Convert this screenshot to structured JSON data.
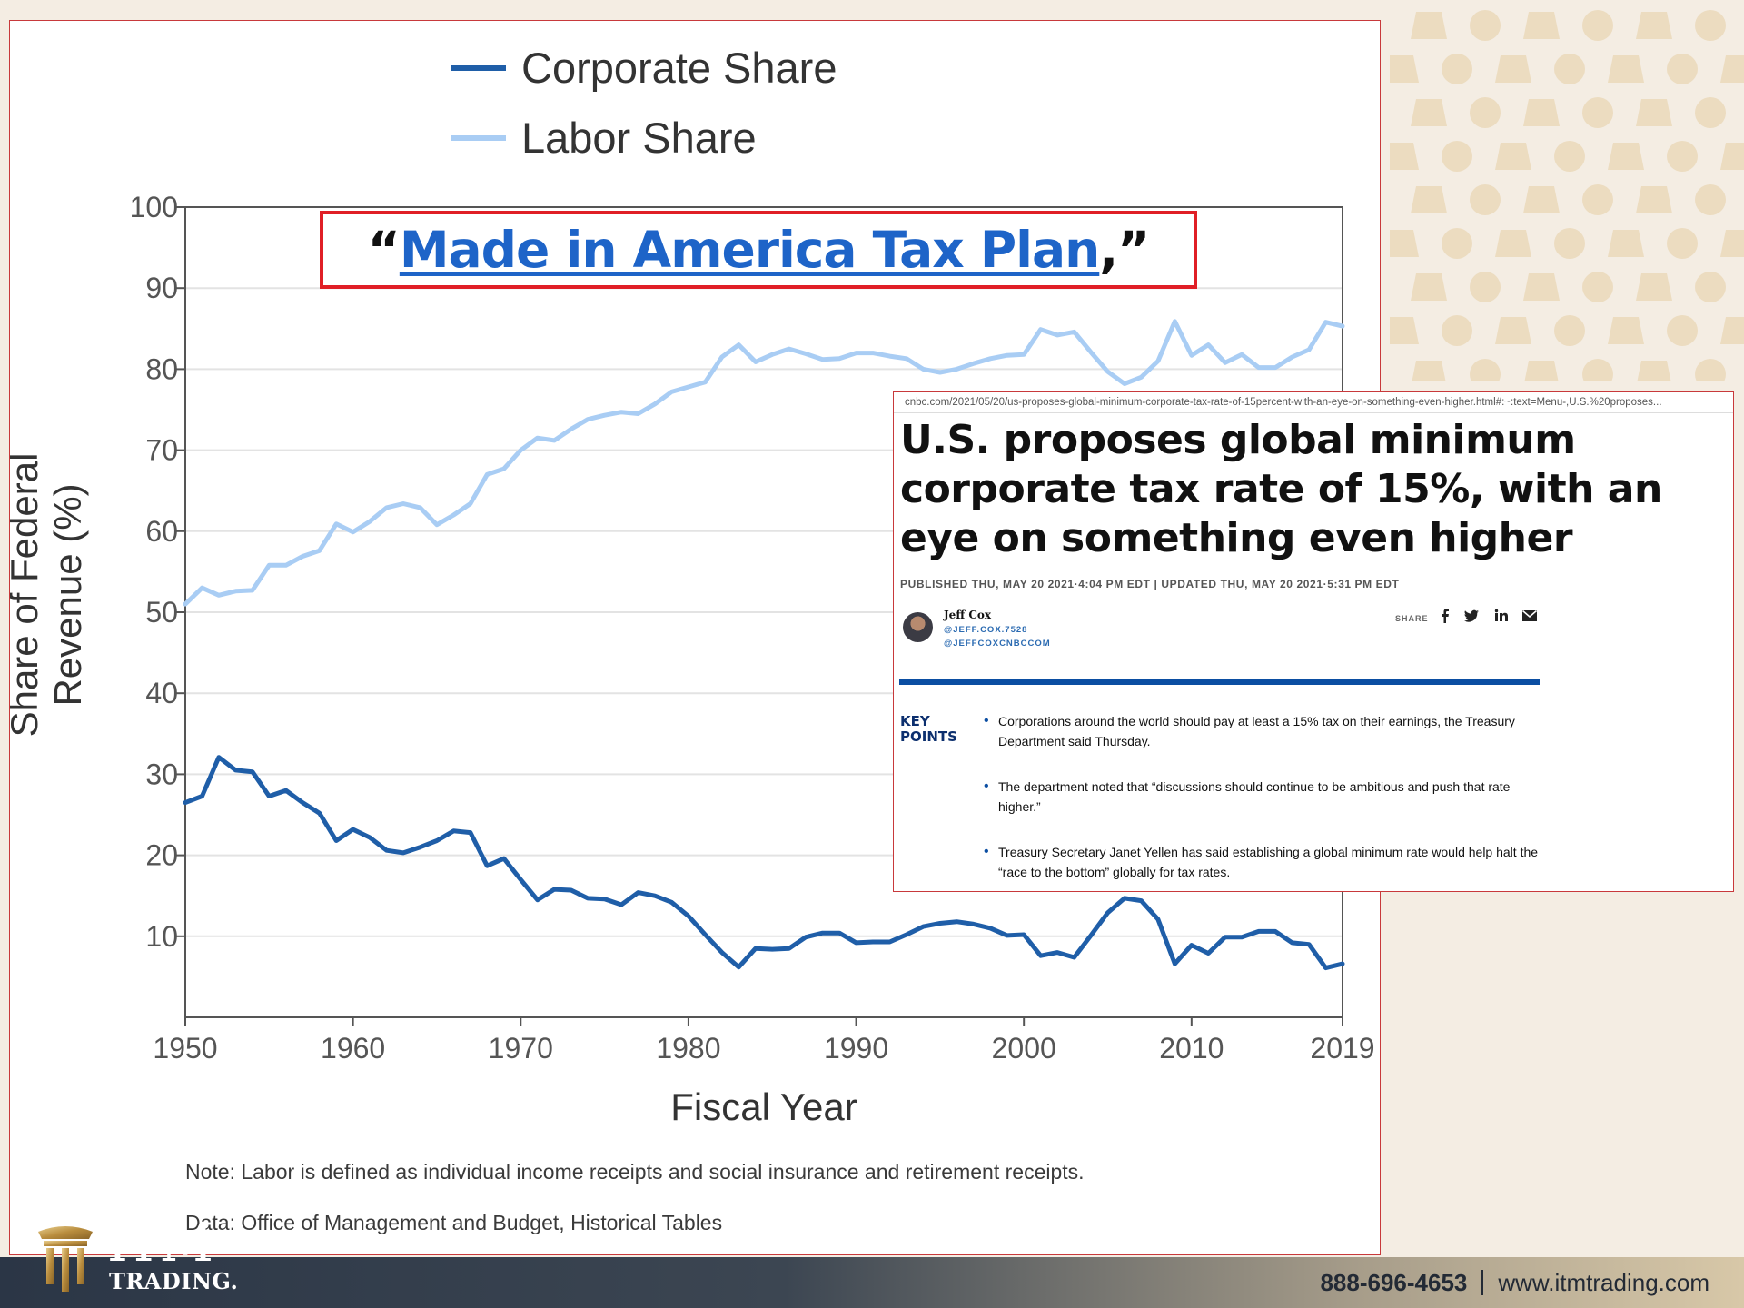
{
  "chart_data": {
    "type": "line",
    "title": "",
    "xlabel": "Fiscal Year",
    "ylabel": "Share of Federal Revenue (%)",
    "xlim": [
      1950,
      2019
    ],
    "ylim": [
      0,
      100
    ],
    "x_ticks": [
      "1950",
      "1960",
      "1970",
      "1980",
      "1990",
      "2000",
      "2010",
      "2019"
    ],
    "y_ticks": [
      "10",
      "20",
      "30",
      "40",
      "50",
      "60",
      "70",
      "80",
      "90",
      "100"
    ],
    "grid": true,
    "legend": "top",
    "x": [
      1950,
      1951,
      1952,
      1953,
      1954,
      1955,
      1956,
      1957,
      1958,
      1959,
      1960,
      1961,
      1962,
      1963,
      1964,
      1965,
      1966,
      1967,
      1968,
      1969,
      1970,
      1971,
      1972,
      1973,
      1974,
      1975,
      1976,
      1977,
      1978,
      1979,
      1980,
      1981,
      1982,
      1983,
      1984,
      1985,
      1986,
      1987,
      1988,
      1989,
      1990,
      1991,
      1992,
      1993,
      1994,
      1995,
      1996,
      1997,
      1998,
      1999,
      2000,
      2001,
      2002,
      2003,
      2004,
      2005,
      2006,
      2007,
      2008,
      2009,
      2010,
      2011,
      2012,
      2013,
      2014,
      2015,
      2016,
      2017,
      2018,
      2019
    ],
    "series": [
      {
        "name": "Corporate Share",
        "color": "#1f5ea8",
        "values": [
          26.5,
          27.3,
          32.1,
          30.5,
          30.3,
          27.3,
          28.0,
          26.5,
          25.2,
          21.8,
          23.2,
          22.2,
          20.6,
          20.3,
          21.0,
          21.8,
          23.0,
          22.8,
          18.7,
          19.6,
          17.0,
          14.5,
          15.8,
          15.7,
          14.7,
          14.6,
          13.9,
          15.4,
          15.0,
          14.2,
          12.5,
          10.2,
          8.0,
          6.2,
          8.5,
          8.4,
          8.5,
          9.9,
          10.4,
          10.4,
          9.2,
          9.3,
          9.3,
          10.2,
          11.2,
          11.6,
          11.8,
          11.5,
          11.0,
          10.1,
          10.2,
          7.6,
          8.0,
          7.4,
          10.1,
          12.9,
          14.7,
          14.4,
          12.1,
          6.6,
          8.9,
          7.9,
          9.9,
          9.9,
          10.6,
          10.6,
          9.2,
          9.0,
          6.1,
          6.6
        ]
      },
      {
        "name": "Labor Share",
        "color": "#a9cdf4",
        "values": [
          51.0,
          53.0,
          52.1,
          52.6,
          52.7,
          55.8,
          55.8,
          56.9,
          57.6,
          60.9,
          59.9,
          61.2,
          62.9,
          63.4,
          62.9,
          60.8,
          62.0,
          63.4,
          67.0,
          67.7,
          70.0,
          71.5,
          71.2,
          72.6,
          73.8,
          74.3,
          74.7,
          74.5,
          75.7,
          77.2,
          77.8,
          78.4,
          81.5,
          83.0,
          80.9,
          81.8,
          82.5,
          81.9,
          81.2,
          81.3,
          82.0,
          82.0,
          81.6,
          81.3,
          80.0,
          79.6,
          80.0,
          80.7,
          81.3,
          81.7,
          81.8,
          84.9,
          84.2,
          84.6,
          82.1,
          79.7,
          78.2,
          79.0,
          81.0,
          85.9,
          81.7,
          83.0,
          80.8,
          81.8,
          80.2,
          80.2,
          81.5,
          82.4,
          85.8,
          85.3
        ]
      }
    ]
  },
  "notes": {
    "note": "Note: Labor is defined as individual income receipts and social insurance and retirement receipts.",
    "data_source": "Data: Office of Management and Budget, Historical Tables"
  },
  "headline": {
    "open_quote": "“",
    "link_text": "Made in America Tax Plan",
    "close_quote": ",”"
  },
  "article": {
    "url": "cnbc.com/2021/05/20/us-proposes-global-minimum-corporate-tax-rate-of-15percent-with-an-eye-on-something-even-higher.html#:~:text=Menu-,U.S.%20proposes...",
    "title": "U.S. proposes global minimum corporate tax rate of 15%, with an eye on something even higher",
    "dateline": "PUBLISHED THU, MAY 20 2021·4:04 PM EDT | UPDATED THU, MAY 20 2021·5:31 PM EDT",
    "author": "Jeff Cox",
    "handle_1": "@JEFF.COX.7528",
    "handle_2": "@JEFFCOXCNBCCOM",
    "share_label": "SHARE",
    "key_points_label_1": "KEY",
    "key_points_label_2": "POINTS",
    "key_points": [
      "Corporations around the world should pay at least a 15% tax on their earnings, the Treasury Department said Thursday.",
      "The department noted that “discussions should continue to be ambitious and push that rate higher.”",
      "Treasury Secretary Janet Yellen has said establishing a global minimum rate would help halt the “race to the bottom” globally for tax rates."
    ]
  },
  "footer": {
    "logo_top": "ITM",
    "logo_bottom": "TRADING.",
    "phone": "888-696-4653",
    "website": "www.itmtrading.com"
  },
  "icons": [
    "facebook-icon",
    "twitter-icon",
    "linkedin-icon",
    "email-icon",
    "pillar-logo-icon"
  ]
}
